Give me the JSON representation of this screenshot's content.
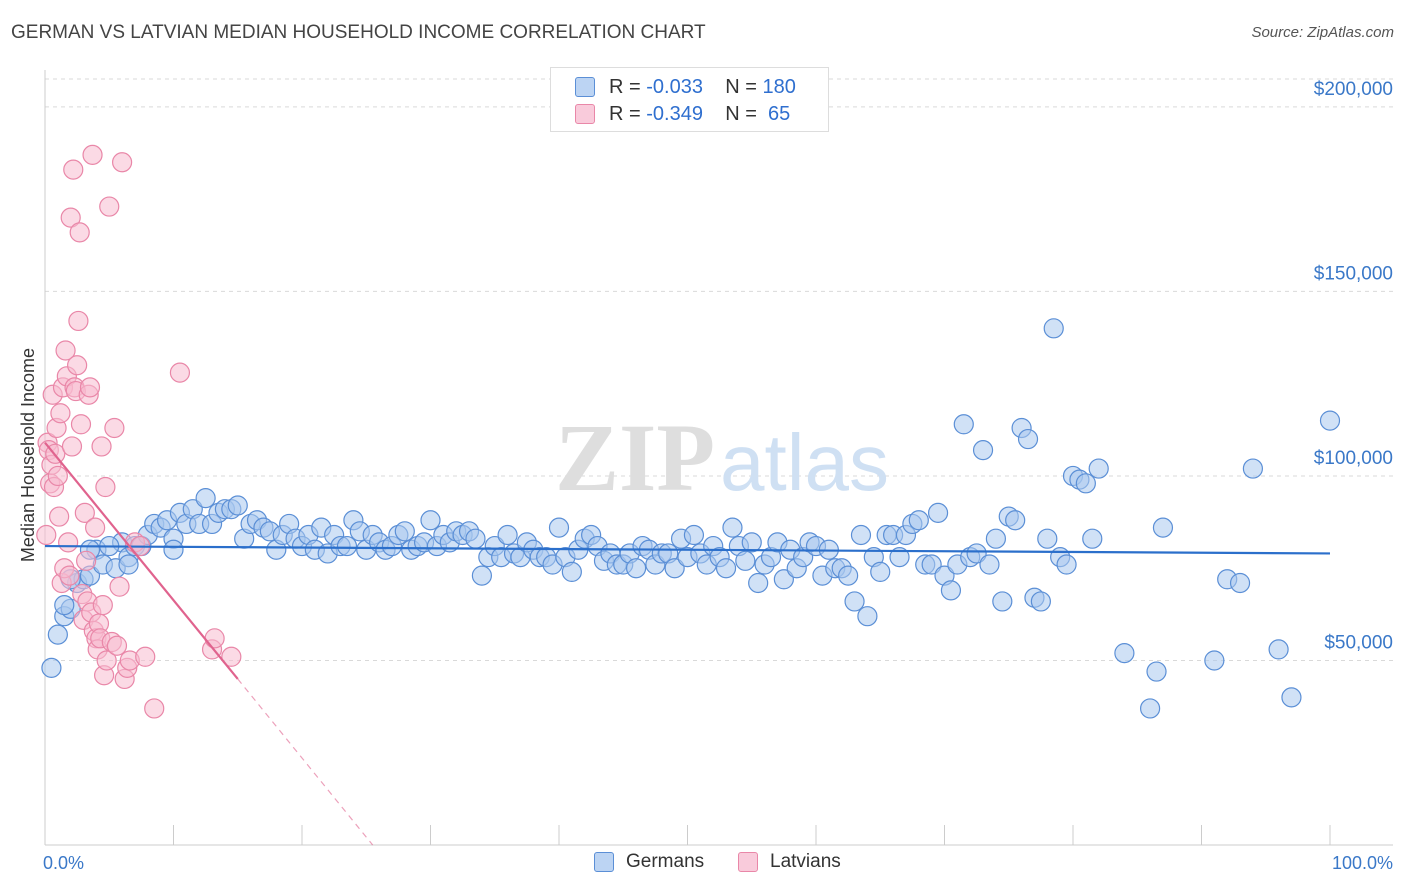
{
  "title": "GERMAN VS LATVIAN MEDIAN HOUSEHOLD INCOME CORRELATION CHART",
  "source": "Source: ZipAtlas.com",
  "watermark": {
    "zip": "ZIP",
    "atlas": "atlas"
  },
  "legend": {
    "rows": [
      {
        "r_label": "R =",
        "r_value": "-0.033",
        "n_label": "N =",
        "n_value": "180"
      },
      {
        "r_label": "R =",
        "r_value": "-0.349",
        "n_label": "N =",
        "n_value": " 65"
      }
    ]
  },
  "colors": {
    "germans_fill": "#a9c8ef",
    "germans_stroke": "#5b8fd6",
    "germans_line": "#2b6fcb",
    "latvians_fill": "#f7bccf",
    "latvians_stroke": "#e987a8",
    "latvians_line": "#e0638e",
    "grid": "#d9d9d9",
    "axis_text": "#3a78c8"
  },
  "chart_data": {
    "type": "scatter",
    "title": "GERMAN VS LATVIAN MEDIAN HOUSEHOLD INCOME CORRELATION CHART",
    "xlabel": "",
    "ylabel": "Median Household Income",
    "xlim": [
      0,
      100
    ],
    "ylim": [
      0,
      210000
    ],
    "x_tick_labels": [
      {
        "value": 0,
        "label": "0.0%"
      },
      {
        "value": 100,
        "label": "100.0%"
      }
    ],
    "y_ticks": [
      {
        "value": 50000,
        "label": "$50,000"
      },
      {
        "value": 100000,
        "label": "$100,000"
      },
      {
        "value": 150000,
        "label": "$150,000"
      },
      {
        "value": 200000,
        "label": "$200,000"
      }
    ],
    "legend_placement": "bottom-center",
    "series": [
      {
        "name": "Germans",
        "r": -0.033,
        "n": 180,
        "trend": {
          "x0": 0,
          "y0": 81000,
          "x1": 100,
          "y1": 79000,
          "dashed_to": null
        },
        "points": [
          [
            0.5,
            48000
          ],
          [
            1,
            57000
          ],
          [
            1.5,
            62000
          ],
          [
            2,
            64000
          ],
          [
            2.5,
            71000
          ],
          [
            3,
            72000
          ],
          [
            3.5,
            73000
          ],
          [
            4,
            80000
          ],
          [
            4.5,
            76000
          ],
          [
            5.5,
            75000
          ],
          [
            6,
            82000
          ],
          [
            6.5,
            78000
          ],
          [
            7,
            81000
          ],
          [
            7.5,
            81000
          ],
          [
            8,
            84000
          ],
          [
            8.5,
            87000
          ],
          [
            9,
            86000
          ],
          [
            9.5,
            88000
          ],
          [
            10,
            83000
          ],
          [
            10.5,
            90000
          ],
          [
            11,
            87000
          ],
          [
            11.5,
            91000
          ],
          [
            12,
            87000
          ],
          [
            12.5,
            94000
          ],
          [
            13,
            87000
          ],
          [
            13.5,
            90000
          ],
          [
            14,
            91000
          ],
          [
            14.5,
            91000
          ],
          [
            15,
            92000
          ],
          [
            15.5,
            83000
          ],
          [
            16,
            87000
          ],
          [
            16.5,
            88000
          ],
          [
            17,
            86000
          ],
          [
            17.5,
            85000
          ],
          [
            18,
            80000
          ],
          [
            18.5,
            84000
          ],
          [
            19,
            87000
          ],
          [
            19.5,
            83000
          ],
          [
            20,
            81000
          ],
          [
            20.5,
            84000
          ],
          [
            21,
            80000
          ],
          [
            21.5,
            86000
          ],
          [
            22,
            79000
          ],
          [
            22.5,
            84000
          ],
          [
            23,
            81000
          ],
          [
            23.5,
            81000
          ],
          [
            24,
            88000
          ],
          [
            24.5,
            85000
          ],
          [
            25,
            80000
          ],
          [
            25.5,
            84000
          ],
          [
            26,
            82000
          ],
          [
            26.5,
            80000
          ],
          [
            27,
            81000
          ],
          [
            27.5,
            84000
          ],
          [
            28,
            85000
          ],
          [
            28.5,
            80000
          ],
          [
            29,
            81000
          ],
          [
            29.5,
            82000
          ],
          [
            30,
            88000
          ],
          [
            30.5,
            81000
          ],
          [
            31,
            84000
          ],
          [
            31.5,
            82000
          ],
          [
            32,
            85000
          ],
          [
            32.5,
            84000
          ],
          [
            33,
            85000
          ],
          [
            33.5,
            83000
          ],
          [
            34,
            73000
          ],
          [
            34.5,
            78000
          ],
          [
            35,
            81000
          ],
          [
            35.5,
            78000
          ],
          [
            36,
            84000
          ],
          [
            36.5,
            79000
          ],
          [
            37,
            78000
          ],
          [
            37.5,
            82000
          ],
          [
            38,
            80000
          ],
          [
            38.5,
            78000
          ],
          [
            39,
            78000
          ],
          [
            39.5,
            76000
          ],
          [
            40,
            86000
          ],
          [
            40.5,
            78000
          ],
          [
            41,
            74000
          ],
          [
            41.5,
            80000
          ],
          [
            42,
            83000
          ],
          [
            42.5,
            84000
          ],
          [
            43,
            81000
          ],
          [
            43.5,
            77000
          ],
          [
            44,
            79000
          ],
          [
            44.5,
            76000
          ],
          [
            45,
            76000
          ],
          [
            45.5,
            79000
          ],
          [
            46,
            75000
          ],
          [
            46.5,
            81000
          ],
          [
            47,
            80000
          ],
          [
            47.5,
            76000
          ],
          [
            48,
            79000
          ],
          [
            48.5,
            79000
          ],
          [
            49,
            75000
          ],
          [
            49.5,
            83000
          ],
          [
            50,
            78000
          ],
          [
            50.5,
            84000
          ],
          [
            51,
            79000
          ],
          [
            51.5,
            76000
          ],
          [
            52,
            81000
          ],
          [
            52.5,
            78000
          ],
          [
            53,
            75000
          ],
          [
            53.5,
            86000
          ],
          [
            54,
            81000
          ],
          [
            54.5,
            77000
          ],
          [
            55,
            82000
          ],
          [
            55.5,
            71000
          ],
          [
            56,
            76000
          ],
          [
            56.5,
            78000
          ],
          [
            57,
            82000
          ],
          [
            57.5,
            72000
          ],
          [
            58,
            80000
          ],
          [
            58.5,
            75000
          ],
          [
            59,
            78000
          ],
          [
            59.5,
            82000
          ],
          [
            60,
            81000
          ],
          [
            60.5,
            73000
          ],
          [
            61,
            80000
          ],
          [
            61.5,
            75000
          ],
          [
            62,
            75000
          ],
          [
            62.5,
            73000
          ],
          [
            63,
            66000
          ],
          [
            63.5,
            84000
          ],
          [
            64,
            62000
          ],
          [
            64.5,
            78000
          ],
          [
            65,
            74000
          ],
          [
            65.5,
            84000
          ],
          [
            66,
            84000
          ],
          [
            66.5,
            78000
          ],
          [
            67,
            84000
          ],
          [
            67.5,
            87000
          ],
          [
            68,
            88000
          ],
          [
            68.5,
            76000
          ],
          [
            69,
            76000
          ],
          [
            69.5,
            90000
          ],
          [
            70,
            73000
          ],
          [
            70.5,
            69000
          ],
          [
            71,
            76000
          ],
          [
            71.5,
            114000
          ],
          [
            72,
            78000
          ],
          [
            72.5,
            79000
          ],
          [
            73,
            107000
          ],
          [
            73.5,
            76000
          ],
          [
            74,
            83000
          ],
          [
            74.5,
            66000
          ],
          [
            75,
            89000
          ],
          [
            75.5,
            88000
          ],
          [
            76,
            113000
          ],
          [
            76.5,
            110000
          ],
          [
            77,
            67000
          ],
          [
            77.5,
            66000
          ],
          [
            78,
            83000
          ],
          [
            78.5,
            140000
          ],
          [
            79,
            78000
          ],
          [
            79.5,
            76000
          ],
          [
            80,
            100000
          ],
          [
            80.5,
            99000
          ],
          [
            81,
            98000
          ],
          [
            81.5,
            83000
          ],
          [
            82,
            102000
          ],
          [
            84,
            52000
          ],
          [
            86,
            37000
          ],
          [
            86.5,
            47000
          ],
          [
            87,
            86000
          ],
          [
            91,
            50000
          ],
          [
            92,
            72000
          ],
          [
            93,
            71000
          ],
          [
            94,
            102000
          ],
          [
            96,
            53000
          ],
          [
            97,
            40000
          ],
          [
            100,
            115000
          ],
          [
            1.5,
            65000
          ],
          [
            2,
            72000
          ],
          [
            3.5,
            80000
          ],
          [
            5,
            81000
          ],
          [
            6.5,
            76000
          ],
          [
            10,
            80000
          ]
        ]
      },
      {
        "name": "Latvians",
        "r": -0.349,
        "n": 65,
        "trend": {
          "x0": 0,
          "y0": 109000,
          "x1": 15,
          "y1": 45000,
          "dashed_to": {
            "x": 25.5,
            "y": 0
          }
        },
        "points": [
          [
            0.1,
            84000
          ],
          [
            0.2,
            109000
          ],
          [
            0.3,
            107000
          ],
          [
            0.4,
            98000
          ],
          [
            0.5,
            103000
          ],
          [
            0.6,
            122000
          ],
          [
            0.7,
            97000
          ],
          [
            0.8,
            106000
          ],
          [
            0.9,
            113000
          ],
          [
            1,
            100000
          ],
          [
            1.1,
            89000
          ],
          [
            1.2,
            117000
          ],
          [
            1.3,
            71000
          ],
          [
            1.4,
            124000
          ],
          [
            1.5,
            75000
          ],
          [
            1.6,
            134000
          ],
          [
            1.7,
            127000
          ],
          [
            1.8,
            82000
          ],
          [
            1.9,
            73000
          ],
          [
            2,
            170000
          ],
          [
            2.1,
            108000
          ],
          [
            2.2,
            183000
          ],
          [
            2.3,
            124000
          ],
          [
            2.4,
            123000
          ],
          [
            2.5,
            130000
          ],
          [
            2.6,
            142000
          ],
          [
            2.7,
            166000
          ],
          [
            2.8,
            114000
          ],
          [
            2.9,
            68000
          ],
          [
            3,
            61000
          ],
          [
            3.1,
            90000
          ],
          [
            3.2,
            77000
          ],
          [
            3.3,
            66000
          ],
          [
            3.4,
            122000
          ],
          [
            3.5,
            124000
          ],
          [
            3.6,
            63000
          ],
          [
            3.7,
            187000
          ],
          [
            3.8,
            58000
          ],
          [
            3.9,
            86000
          ],
          [
            4,
            56000
          ],
          [
            4.1,
            53000
          ],
          [
            4.2,
            60000
          ],
          [
            4.3,
            56000
          ],
          [
            4.4,
            108000
          ],
          [
            4.5,
            65000
          ],
          [
            4.6,
            46000
          ],
          [
            4.7,
            97000
          ],
          [
            4.8,
            50000
          ],
          [
            5,
            173000
          ],
          [
            5.2,
            55000
          ],
          [
            5.4,
            113000
          ],
          [
            5.6,
            54000
          ],
          [
            5.8,
            70000
          ],
          [
            6,
            185000
          ],
          [
            6.2,
            45000
          ],
          [
            6.4,
            48000
          ],
          [
            6.6,
            50000
          ],
          [
            7,
            82000
          ],
          [
            7.4,
            81000
          ],
          [
            7.8,
            51000
          ],
          [
            8.5,
            37000
          ],
          [
            10.5,
            128000
          ],
          [
            13,
            53000
          ],
          [
            13.2,
            56000
          ],
          [
            14.5,
            51000
          ]
        ]
      }
    ]
  }
}
